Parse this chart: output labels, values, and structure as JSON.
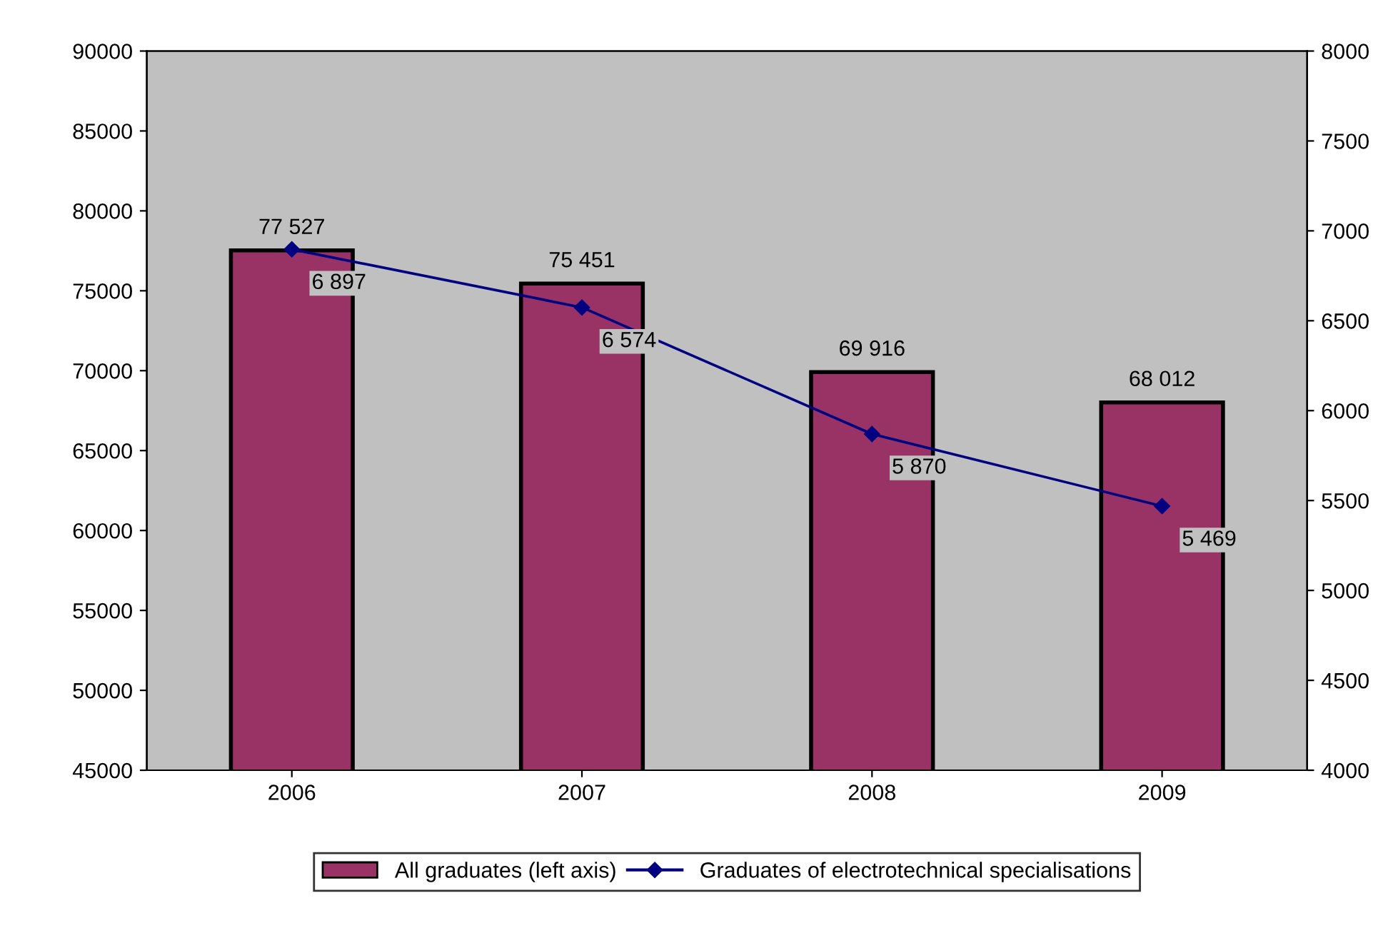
{
  "chart_data": {
    "type": "bar",
    "categories": [
      "2006",
      "2007",
      "2008",
      "2009"
    ],
    "series": [
      {
        "name": "All graduates (left axis)",
        "color": "#993366",
        "values": [
          77527,
          75451,
          69916,
          68012
        ],
        "value_labels": [
          "77 527",
          "75 451",
          "69 916",
          "68 012"
        ]
      },
      {
        "name": "Graduates of electrotechnical specialisations",
        "type": "line",
        "axis": "y2",
        "color": "#000080",
        "marker": "diamond",
        "values": [
          6897,
          6574,
          5870,
          5469
        ],
        "value_labels": [
          "6 897",
          "6 574",
          "5 870",
          "5 469"
        ]
      }
    ],
    "ylim": [
      45000,
      90000
    ],
    "yticks": [
      45000,
      50000,
      55000,
      60000,
      65000,
      70000,
      75000,
      80000,
      85000,
      90000
    ],
    "y2lim": [
      4000,
      8000
    ],
    "y2ticks": [
      4000,
      4500,
      5000,
      5500,
      6000,
      6500,
      7000,
      7500,
      8000
    ],
    "grid": false,
    "legend": "bottom"
  }
}
